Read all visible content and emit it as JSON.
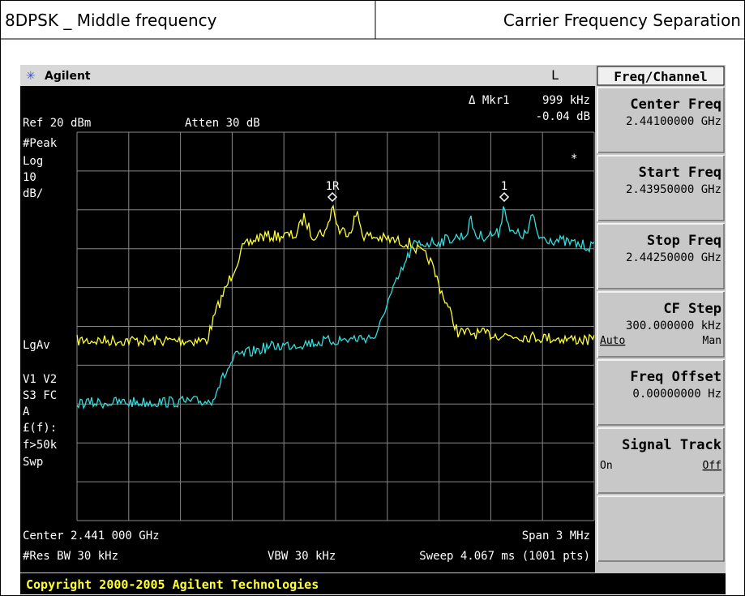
{
  "header": {
    "left": "8DPSK _ Middle frequency",
    "right": "Carrier Frequency Separation"
  },
  "instrument": {
    "brand": "Agilent",
    "indicator": "L",
    "menu_title": "Freq/Channel"
  },
  "screen": {
    "marker": "Δ Mkr1",
    "marker_freq": "999 kHz",
    "marker_level": "-0.04 dB",
    "ref": "Ref 20 dBm",
    "atten": "Atten 30 dB",
    "left_annotations": [
      "#Peak",
      "Log",
      "10",
      "dB/",
      "LgAv",
      "V1  V2",
      "S3  FC",
      "A",
      "£(f):",
      "f>50k",
      "Swp"
    ],
    "star": "*",
    "marker_labels": [
      "1R",
      "1"
    ],
    "center": "Center 2.441 000 GHz",
    "span": "Span 3 MHz",
    "rbw": "#Res BW 30 kHz",
    "vbw": "VBW 30 kHz",
    "sweep": "Sweep 4.067 ms (1001 pts)"
  },
  "softkeys": [
    {
      "title": "Center Freq",
      "value": "2.44100000 GHz"
    },
    {
      "title": "Start Freq",
      "value": "2.43950000 GHz"
    },
    {
      "title": "Stop Freq",
      "value": "2.44250000 GHz"
    },
    {
      "title": "CF Step",
      "value": "300.000000 kHz",
      "left": "Auto",
      "right": "Man"
    },
    {
      "title": "Freq Offset",
      "value": "0.00000000  Hz"
    },
    {
      "title": "Signal Track",
      "left": "On",
      "right": "Off"
    }
  ],
  "copyright": "Copyright 2000-2005 Agilent Technologies"
}
